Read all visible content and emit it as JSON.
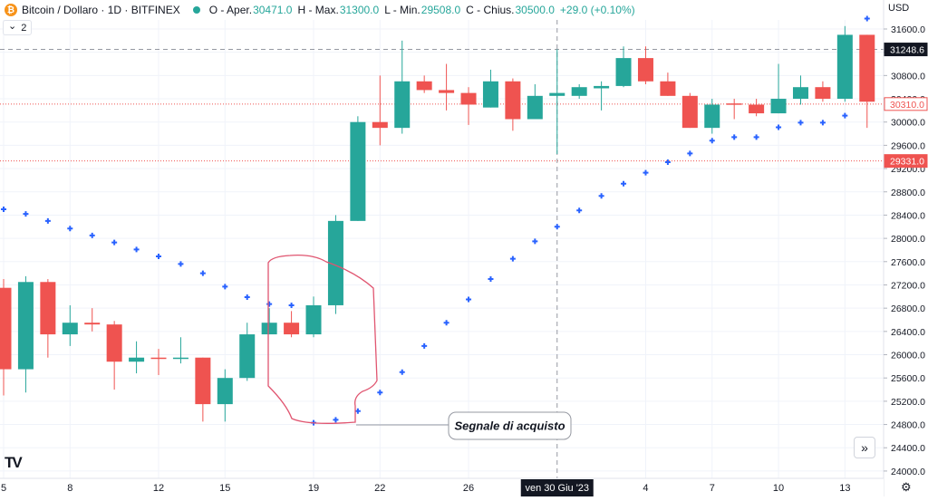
{
  "legend": {
    "coin_glyph": "₿",
    "title": "Bitcoin / Dollaro · 1D · BITFINEX",
    "o_label": "O - Aper.",
    "o_value": "30471.0",
    "h_label": "H - Max.",
    "h_value": "31300.0",
    "l_label": "L - Min.",
    "l_value": "29508.0",
    "c_label": "C - Chius.",
    "c_value": "30500.0",
    "change": "+29.0 (+0.10%)"
  },
  "indicator_toggle": {
    "chevron": "⌄",
    "count": "2"
  },
  "currency": "USD",
  "scroll_button": "»",
  "logo_text": "TV",
  "settings_glyph": "⚙",
  "annotation": {
    "text": "Segnale di acquisto"
  },
  "colors": {
    "up": "#26a69a",
    "down": "#ef5350",
    "psar": "#2962ff",
    "annotation": "#e05570",
    "grid": "#f0f3fa"
  },
  "chart_data": {
    "type": "candlestick",
    "symbol": "Bitcoin / Dollaro",
    "interval": "1D",
    "exchange": "BITFINEX",
    "ylim": [
      23900,
      31900
    ],
    "y_ticks": [
      "31600.0",
      "31200.0",
      "30800.0",
      "30400.0",
      "30000.0",
      "29600.0",
      "29200.0",
      "28800.0",
      "28400.0",
      "28000.0",
      "27600.0",
      "27200.0",
      "26800.0",
      "26400.0",
      "26000.0",
      "25600.0",
      "25200.0",
      "24800.0",
      "24400.0",
      "24000.0"
    ],
    "x_ticks": [
      {
        "label": "5",
        "index": 0
      },
      {
        "label": "8",
        "index": 3
      },
      {
        "label": "12",
        "index": 7
      },
      {
        "label": "15",
        "index": 10
      },
      {
        "label": "19",
        "index": 14
      },
      {
        "label": "22",
        "index": 17
      },
      {
        "label": "26",
        "index": 21
      },
      {
        "label": "4",
        "index": 29
      },
      {
        "label": "7",
        "index": 32
      },
      {
        "label": "10",
        "index": 35
      },
      {
        "label": "13",
        "index": 38
      }
    ],
    "crosshair": {
      "index": 25,
      "label": "ven 30 Giu '23"
    },
    "price_lines": [
      {
        "value": 31248.6,
        "label": "31248.6",
        "style": "dashed",
        "color": "#9598a1",
        "tag_bg": "#131722",
        "tag_fg": "#ffffff"
      },
      {
        "value": 30310.0,
        "label": "30310.0",
        "style": "dotted",
        "color": "#ef5350",
        "tag_bg": "#ffffff",
        "tag_fg": "#ef5350"
      },
      {
        "value": 29331.0,
        "label": "29331.0",
        "style": "dotted",
        "color": "#ef5350",
        "tag_bg": "#ef5350",
        "tag_fg": "#ffffff"
      }
    ],
    "candles": [
      {
        "o": 27150,
        "h": 27300,
        "l": 25300,
        "c": 25750
      },
      {
        "o": 25750,
        "h": 27350,
        "l": 25350,
        "c": 27250
      },
      {
        "o": 27250,
        "h": 27300,
        "l": 25950,
        "c": 26350
      },
      {
        "o": 26350,
        "h": 26850,
        "l": 26150,
        "c": 26550
      },
      {
        "o": 26550,
        "h": 26800,
        "l": 26400,
        "c": 26520
      },
      {
        "o": 26520,
        "h": 26580,
        "l": 25400,
        "c": 25880
      },
      {
        "o": 25880,
        "h": 26230,
        "l": 25680,
        "c": 25950
      },
      {
        "o": 25950,
        "h": 26100,
        "l": 25650,
        "c": 25930
      },
      {
        "o": 25930,
        "h": 26300,
        "l": 25850,
        "c": 25950
      },
      {
        "o": 25950,
        "h": 25950,
        "l": 24850,
        "c": 25150
      },
      {
        "o": 25150,
        "h": 25750,
        "l": 24850,
        "c": 25600
      },
      {
        "o": 25600,
        "h": 26550,
        "l": 25550,
        "c": 26350
      },
      {
        "o": 26350,
        "h": 26800,
        "l": 26350,
        "c": 26550
      },
      {
        "o": 26550,
        "h": 26750,
        "l": 26300,
        "c": 26350
      },
      {
        "o": 26350,
        "h": 27000,
        "l": 26300,
        "c": 26850
      },
      {
        "o": 26850,
        "h": 28400,
        "l": 26700,
        "c": 28300
      },
      {
        "o": 28300,
        "h": 30100,
        "l": 28300,
        "c": 30000
      },
      {
        "o": 30000,
        "h": 30800,
        "l": 29600,
        "c": 29900
      },
      {
        "o": 29900,
        "h": 31400,
        "l": 29800,
        "c": 30700
      },
      {
        "o": 30700,
        "h": 30800,
        "l": 30500,
        "c": 30550
      },
      {
        "o": 30550,
        "h": 31000,
        "l": 30200,
        "c": 30500
      },
      {
        "o": 30500,
        "h": 30600,
        "l": 29950,
        "c": 30300
      },
      {
        "o": 30250,
        "h": 30900,
        "l": 30250,
        "c": 30700
      },
      {
        "o": 30700,
        "h": 30750,
        "l": 29850,
        "c": 30050
      },
      {
        "o": 30050,
        "h": 30650,
        "l": 30050,
        "c": 30450
      },
      {
        "o": 30450,
        "h": 31250,
        "l": 29450,
        "c": 30500
      },
      {
        "o": 30450,
        "h": 30650,
        "l": 30400,
        "c": 30600
      },
      {
        "o": 30580,
        "h": 30700,
        "l": 30200,
        "c": 30620
      },
      {
        "o": 30620,
        "h": 31300,
        "l": 30600,
        "c": 31100
      },
      {
        "o": 31100,
        "h": 31300,
        "l": 30650,
        "c": 30700
      },
      {
        "o": 30700,
        "h": 30850,
        "l": 30450,
        "c": 30450
      },
      {
        "o": 30450,
        "h": 30500,
        "l": 29900,
        "c": 29900
      },
      {
        "o": 29900,
        "h": 30400,
        "l": 29800,
        "c": 30300
      },
      {
        "o": 30320,
        "h": 30400,
        "l": 30050,
        "c": 30300
      },
      {
        "o": 30300,
        "h": 30400,
        "l": 30100,
        "c": 30150
      },
      {
        "o": 30150,
        "h": 31000,
        "l": 30150,
        "c": 30400
      },
      {
        "o": 30400,
        "h": 30800,
        "l": 30300,
        "c": 30600
      },
      {
        "o": 30600,
        "h": 30700,
        "l": 30350,
        "c": 30400
      },
      {
        "o": 30400,
        "h": 31650,
        "l": 30350,
        "c": 31500
      },
      {
        "o": 31500,
        "h": 31500,
        "l": 29900,
        "c": 30350
      }
    ],
    "psar": [
      {
        "i": 0,
        "v": 28500
      },
      {
        "i": 1,
        "v": 28420
      },
      {
        "i": 2,
        "v": 28300
      },
      {
        "i": 3,
        "v": 28170
      },
      {
        "i": 4,
        "v": 28050
      },
      {
        "i": 5,
        "v": 27930
      },
      {
        "i": 6,
        "v": 27810
      },
      {
        "i": 7,
        "v": 27690
      },
      {
        "i": 8,
        "v": 27560
      },
      {
        "i": 9,
        "v": 27400
      },
      {
        "i": 10,
        "v": 27170
      },
      {
        "i": 11,
        "v": 26990
      },
      {
        "i": 12,
        "v": 26870
      },
      {
        "i": 13,
        "v": 26850
      },
      {
        "i": 14,
        "v": 24830
      },
      {
        "i": 15,
        "v": 24880
      },
      {
        "i": 16,
        "v": 25030
      },
      {
        "i": 17,
        "v": 25350
      },
      {
        "i": 18,
        "v": 25700
      },
      {
        "i": 19,
        "v": 26150
      },
      {
        "i": 20,
        "v": 26550
      },
      {
        "i": 21,
        "v": 26950
      },
      {
        "i": 22,
        "v": 27300
      },
      {
        "i": 23,
        "v": 27650
      },
      {
        "i": 24,
        "v": 27950
      },
      {
        "i": 25,
        "v": 28200
      },
      {
        "i": 26,
        "v": 28480
      },
      {
        "i": 27,
        "v": 28730
      },
      {
        "i": 28,
        "v": 28940
      },
      {
        "i": 29,
        "v": 29130
      },
      {
        "i": 30,
        "v": 29310
      },
      {
        "i": 31,
        "v": 29460
      },
      {
        "i": 32,
        "v": 29680
      },
      {
        "i": 33,
        "v": 29740
      },
      {
        "i": 34,
        "v": 29740
      },
      {
        "i": 35,
        "v": 29910
      },
      {
        "i": 36,
        "v": 29990
      },
      {
        "i": 37,
        "v": 29990
      },
      {
        "i": 38,
        "v": 30110
      },
      {
        "i": 39,
        "v": 31780
      },
      {
        "i": 40,
        "v": 31780
      }
    ],
    "annotation": {
      "text": "Segnale di acquisto",
      "index": 16,
      "value": 24760
    }
  }
}
